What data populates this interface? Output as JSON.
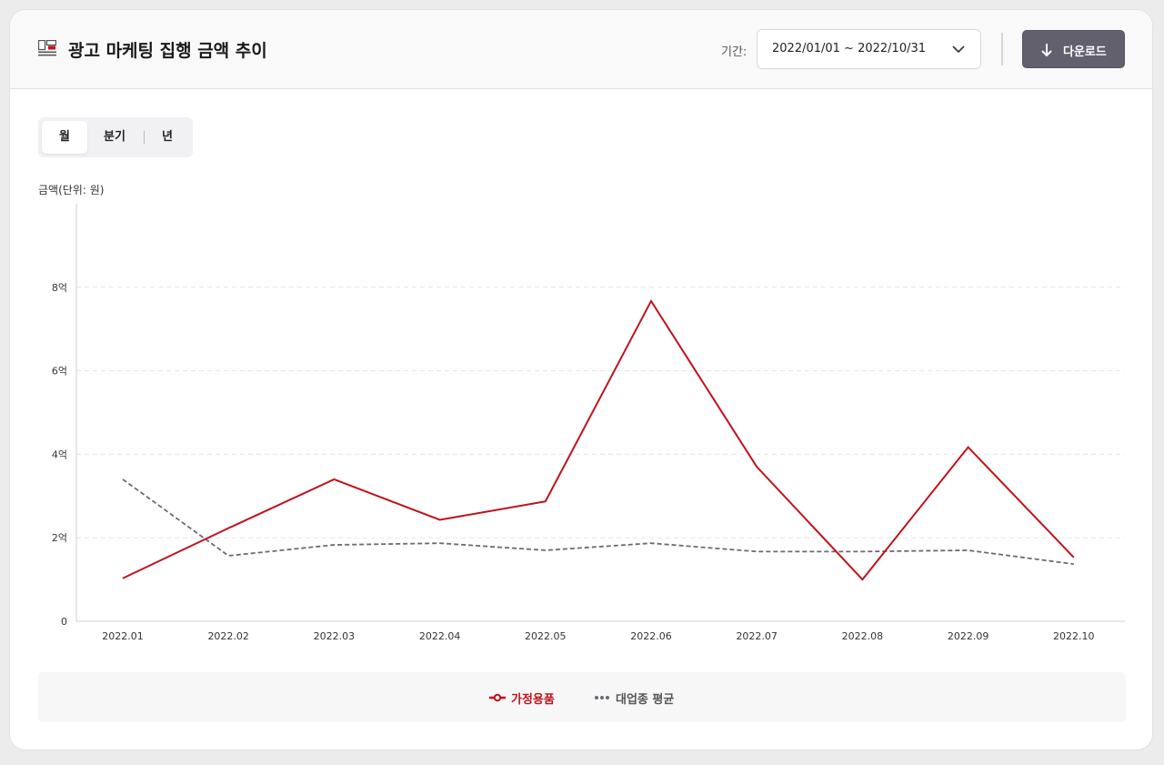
{
  "header": {
    "title": "광고 마케팅 집행 금액 추이",
    "period_label": "기간:",
    "period_value": "2022/01/01 ~ 2022/10/31",
    "download_label": "다운로드"
  },
  "period_tabs": [
    {
      "label": "월",
      "active": true
    },
    {
      "label": "분기",
      "active": false
    },
    {
      "label": "년",
      "active": false
    }
  ],
  "colors": {
    "series_primary": "#c0121b",
    "series_average": "#6b6a74",
    "grid": "#e6e6e6"
  },
  "chart_data": {
    "type": "line",
    "ylabel": "금액(단위: 원)",
    "categories": [
      "2022.01",
      "2022.02",
      "2022.03",
      "2022.04",
      "2022.05",
      "2022.06",
      "2022.07",
      "2022.08",
      "2022.09",
      "2022.10"
    ],
    "ylim": [
      0,
      10
    ],
    "yticks": [
      {
        "value": 0,
        "label": "0"
      },
      {
        "value": 2,
        "label": "2억"
      },
      {
        "value": 4,
        "label": "4억"
      },
      {
        "value": 6,
        "label": "6억"
      },
      {
        "value": 8,
        "label": "8억"
      }
    ],
    "grid": true,
    "legend": "bottom",
    "series": [
      {
        "name": "가정용품",
        "values": [
          1.03,
          2.23,
          3.4,
          2.43,
          2.87,
          7.67,
          3.7,
          1.0,
          4.17,
          1.53
        ],
        "style": "solid"
      },
      {
        "name": "대업종 평균",
        "values": [
          3.4,
          1.57,
          1.83,
          1.87,
          1.7,
          1.87,
          1.67,
          1.67,
          1.7,
          1.37
        ],
        "style": "dashed"
      }
    ]
  }
}
